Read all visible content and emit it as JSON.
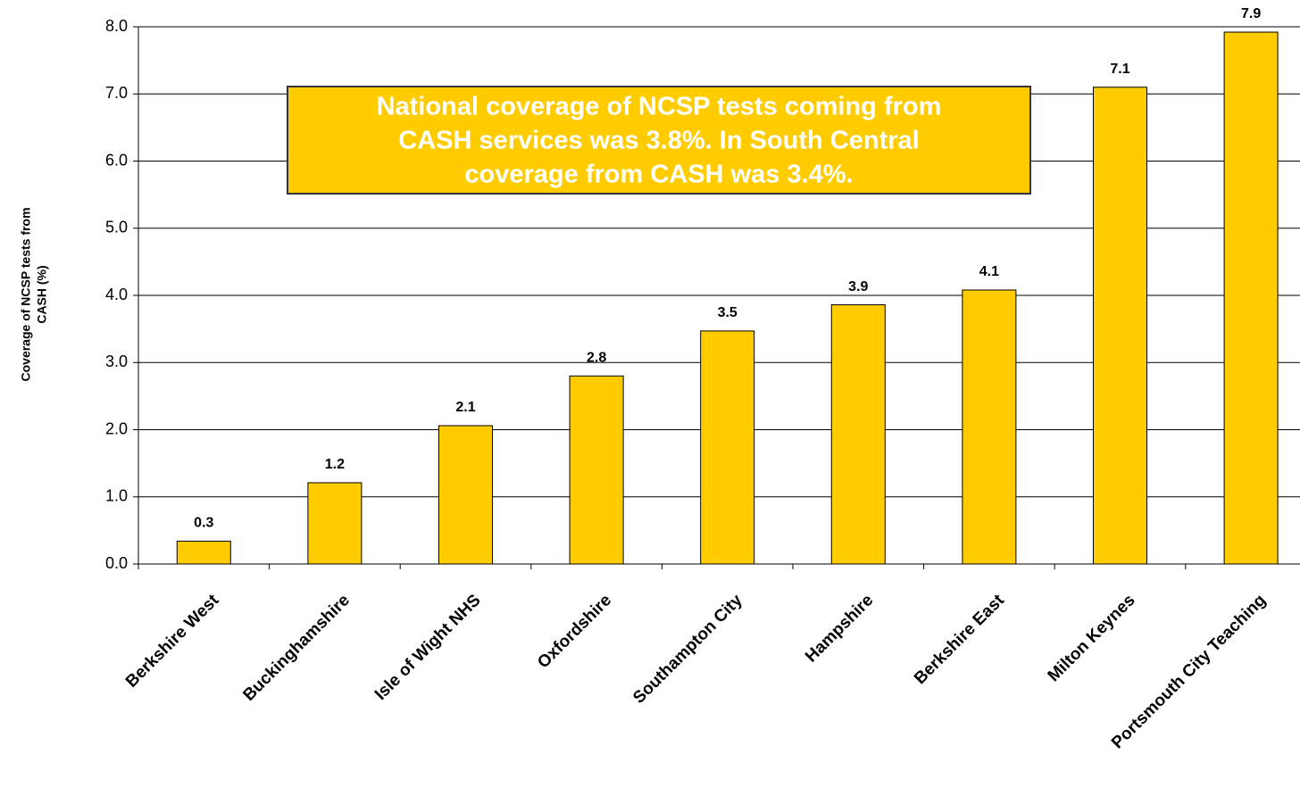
{
  "chart_data": {
    "type": "bar",
    "y_axis_label": [
      "Coverage of NCSP tests from",
      "CASH (%)"
    ],
    "annotation": [
      "National coverage of  NCSP tests coming from",
      "CASH services was 3.8%. In South Central",
      "coverage from CASH was 3.4%."
    ],
    "categories": [
      "Berkshire West",
      "Buckinghamshire",
      "Isle of Wight NHS",
      "Oxfordshire",
      "Southampton City",
      "Hampshire",
      "Berkshire East",
      "Milton Keynes",
      "Portsmouth City Teaching"
    ],
    "values": [
      0.34,
      1.21,
      2.06,
      2.8,
      3.47,
      3.86,
      4.08,
      7.1,
      7.92
    ],
    "value_labels": [
      "0.3",
      "1.2",
      "2.1",
      "2.8",
      "3.5",
      "3.9",
      "4.1",
      "7.1",
      "7.9"
    ],
    "color": "#FFCC00",
    "ylim": [
      0,
      8
    ],
    "yticks": [
      {
        "value": 0,
        "label": "0.0"
      },
      {
        "value": 1,
        "label": "1.0"
      },
      {
        "value": 2,
        "label": "2.0"
      },
      {
        "value": 3,
        "label": "3.0"
      },
      {
        "value": 4,
        "label": "4.0"
      },
      {
        "value": 5,
        "label": "5.0"
      },
      {
        "value": 6,
        "label": "6.0"
      },
      {
        "value": 7,
        "label": "7.0"
      },
      {
        "value": 8,
        "label": "8.0"
      }
    ],
    "grid": true
  }
}
